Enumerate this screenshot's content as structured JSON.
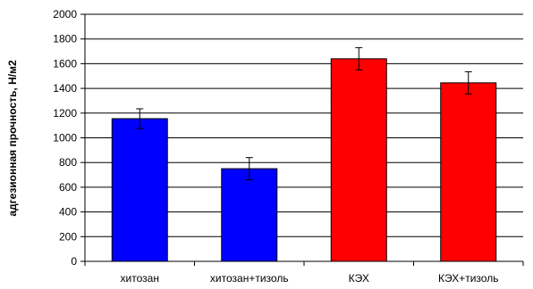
{
  "chart_data": {
    "type": "bar",
    "categories": [
      "хитозан",
      "хитозан+тизоль",
      "КЭХ",
      "КЭХ+тизоль"
    ],
    "values": [
      1155,
      750,
      1640,
      1445
    ],
    "errors": [
      80,
      90,
      90,
      90
    ],
    "bar_colors": [
      "#0000FF",
      "#0000FF",
      "#FF0000",
      "#FF0000"
    ],
    "ylabel": "адгезионная прочность, Н/м2",
    "xlabel": "",
    "title": "",
    "ylim": [
      0,
      2000
    ],
    "yticks": [
      0,
      200,
      400,
      600,
      800,
      1000,
      1200,
      1400,
      1600,
      1800,
      2000
    ],
    "grid": true
  }
}
